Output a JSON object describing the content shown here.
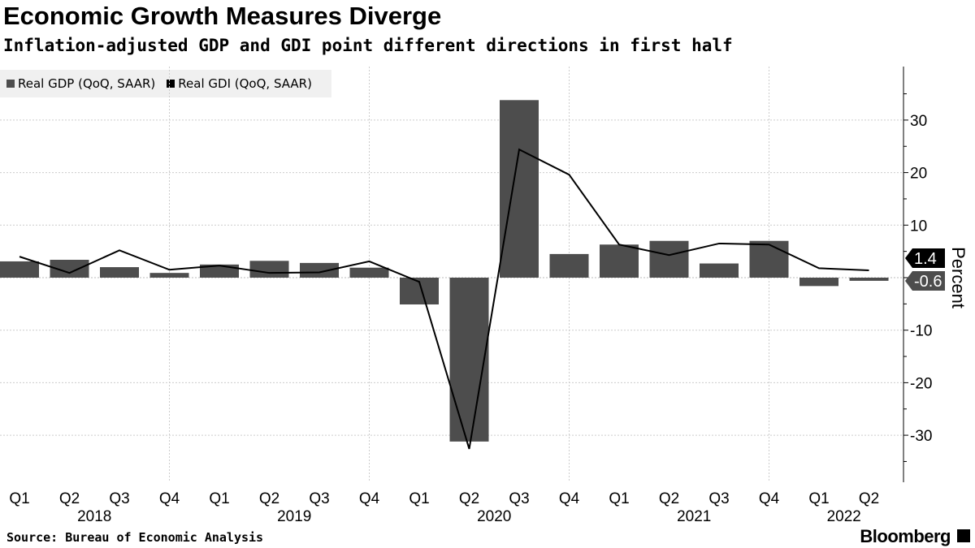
{
  "title": "Economic Growth Measures Diverge",
  "subtitle": "Inflation-adjusted GDP and GDI point different directions in first half",
  "source": "Source: Bureau of Economic Analysis",
  "logo": "Bloomberg",
  "chart_data": {
    "type": "bar+line",
    "categories": [
      "Q1",
      "Q2",
      "Q3",
      "Q4",
      "Q1",
      "Q2",
      "Q3",
      "Q4",
      "Q1",
      "Q2",
      "Q3",
      "Q4",
      "Q1",
      "Q2",
      "Q3",
      "Q4",
      "Q1",
      "Q2"
    ],
    "year_labels": [
      {
        "label": "2018",
        "index": 1.5
      },
      {
        "label": "2019",
        "index": 5.5
      },
      {
        "label": "2020",
        "index": 9.5
      },
      {
        "label": "2021",
        "index": 13.5
      },
      {
        "label": "2022",
        "index": 16.5
      }
    ],
    "series": [
      {
        "name": "Real GDP (QoQ, SAAR)",
        "type": "bar",
        "color": "#4d4d4d",
        "values": [
          3.1,
          3.4,
          2.0,
          0.9,
          2.5,
          3.2,
          2.8,
          1.9,
          -5.1,
          -31.2,
          33.8,
          4.5,
          6.3,
          7.0,
          2.7,
          7.0,
          -1.6,
          -0.6
        ]
      },
      {
        "name": "Real GDI (QoQ, SAAR)",
        "type": "line",
        "color": "#000000",
        "values": [
          4.0,
          0.9,
          5.2,
          1.5,
          2.3,
          0.9,
          1.0,
          3.1,
          -0.8,
          -32.6,
          24.4,
          19.6,
          6.3,
          4.3,
          6.5,
          6.3,
          1.8,
          1.4
        ]
      }
    ],
    "last_value_labels": [
      "1.4",
      "-0.6"
    ],
    "ylabel": "Percent",
    "ylim": [
      -39,
      40
    ],
    "yticks": [
      -30,
      -20,
      -10,
      0,
      10,
      20,
      30
    ],
    "ytick_labels": [
      "-30",
      "-20",
      "-10",
      "0",
      "10",
      "20",
      "30"
    ],
    "grid": true,
    "legend": "top-left",
    "y_axis_side": "right"
  }
}
